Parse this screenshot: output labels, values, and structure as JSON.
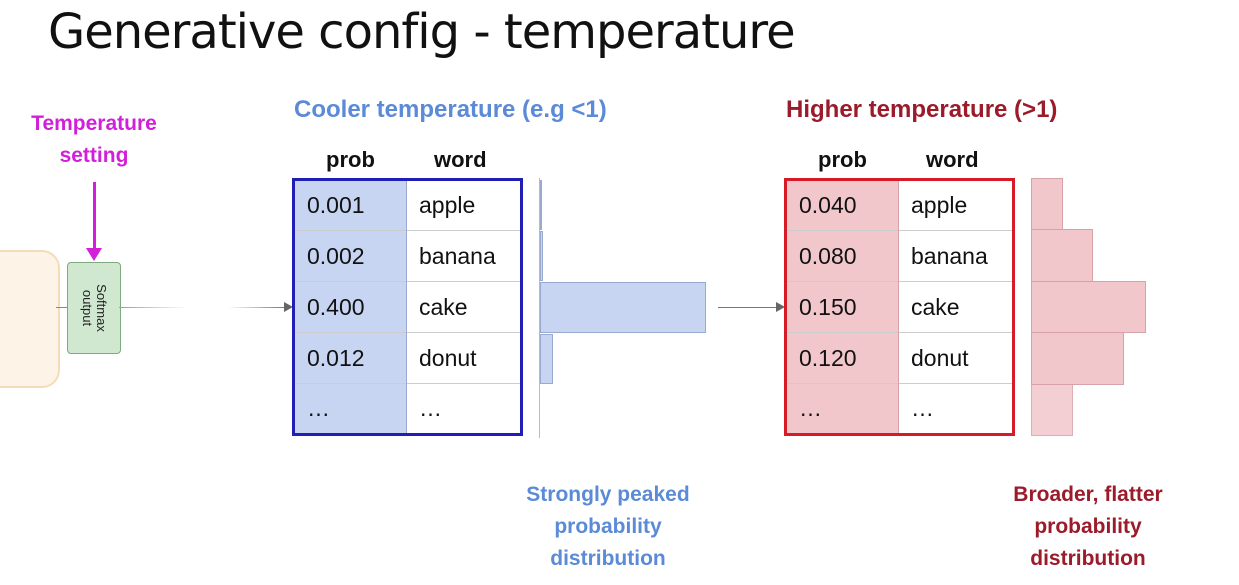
{
  "title": "Generative config - temperature",
  "temperature_setting": "Temperature setting",
  "softmax_label": "Softmax output",
  "colors": {
    "magenta": "#d21fd9",
    "cool": "#5b8ad6",
    "cool_fill": "#c7d5f3",
    "cool_border": "#1f1fb5",
    "warm": "#9b1b2a",
    "warm_fill": "#f2c7cc",
    "warm_border": "#d61b26"
  },
  "cool": {
    "heading": "Cooler temperature (e.g <1)",
    "col_prob": "prob",
    "col_word": "word",
    "rows": [
      {
        "prob": "0.001",
        "word": "apple"
      },
      {
        "prob": "0.002",
        "word": "banana"
      },
      {
        "prob": "0.400",
        "word": "cake"
      },
      {
        "prob": "0.012",
        "word": "donut"
      },
      {
        "prob": "…",
        "word": "…"
      }
    ],
    "caption": "Strongly peaked probability distribution"
  },
  "warm": {
    "heading": "Higher temperature (>1)",
    "col_prob": "prob",
    "col_word": "word",
    "rows": [
      {
        "prob": "0.040",
        "word": "apple"
      },
      {
        "prob": "0.080",
        "word": "banana"
      },
      {
        "prob": "0.150",
        "word": "cake"
      },
      {
        "prob": "0.120",
        "word": "donut"
      },
      {
        "prob": "…",
        "word": "…"
      }
    ],
    "caption": "Broader, flatter probability distribution"
  }
}
